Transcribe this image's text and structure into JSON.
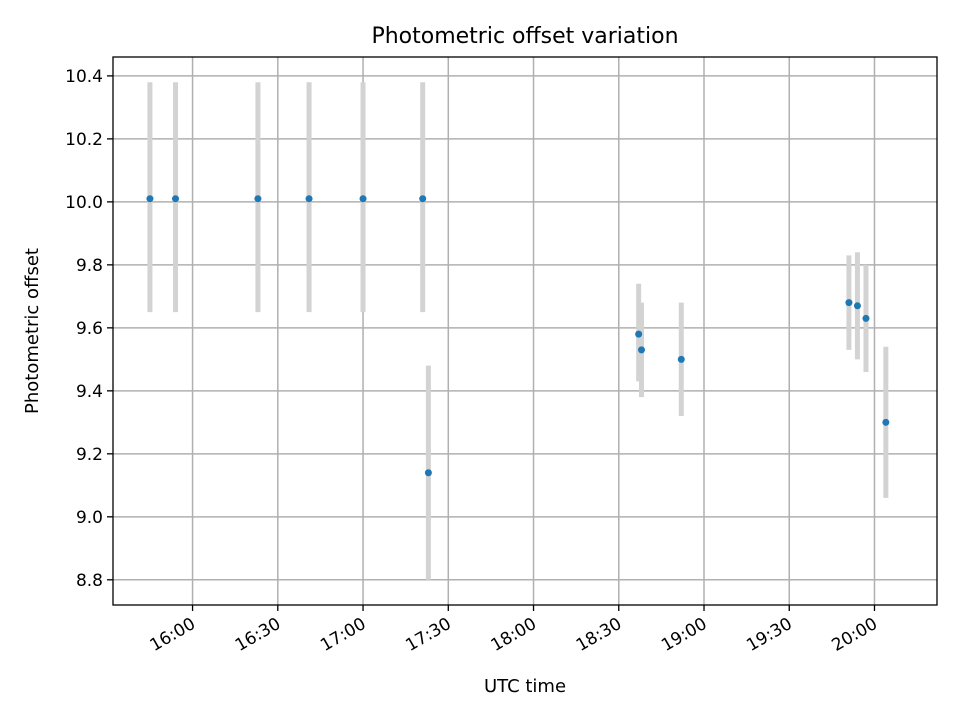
{
  "chart_data": {
    "type": "scatter",
    "title": "Photometric offset variation",
    "xlabel": "UTC time",
    "ylabel": "Photometric offset",
    "x_ticks": [
      "16:00",
      "16:30",
      "17:00",
      "17:30",
      "18:00",
      "18:30",
      "19:00",
      "19:30",
      "20:00"
    ],
    "x_tick_minutes": [
      960,
      990,
      1020,
      1050,
      1080,
      1110,
      1140,
      1170,
      1200
    ],
    "xlim_minutes": [
      932,
      1222
    ],
    "y_ticks": [
      "8.8",
      "9.0",
      "9.2",
      "9.4",
      "9.6",
      "9.8",
      "10.0",
      "10.2",
      "10.4"
    ],
    "y_tick_values": [
      8.8,
      9.0,
      9.2,
      9.4,
      9.6,
      9.8,
      10.0,
      10.2,
      10.4
    ],
    "ylim": [
      8.72,
      10.46
    ],
    "grid": true,
    "marker_color": "#1f77b4",
    "error_bar_color": "#d3d3d3",
    "points": [
      {
        "x": "15:45",
        "y": 10.01,
        "yerr_low": 9.65,
        "yerr_high": 10.38
      },
      {
        "x": "15:54",
        "y": 10.01,
        "yerr_low": 9.65,
        "yerr_high": 10.38
      },
      {
        "x": "16:23",
        "y": 10.01,
        "yerr_low": 9.65,
        "yerr_high": 10.38
      },
      {
        "x": "16:41",
        "y": 10.01,
        "yerr_low": 9.65,
        "yerr_high": 10.38
      },
      {
        "x": "17:00",
        "y": 10.01,
        "yerr_low": 9.65,
        "yerr_high": 10.38
      },
      {
        "x": "17:21",
        "y": 10.01,
        "yerr_low": 9.65,
        "yerr_high": 10.38
      },
      {
        "x": "17:23",
        "y": 9.14,
        "yerr_low": 8.8,
        "yerr_high": 9.48
      },
      {
        "x": "18:37",
        "y": 9.58,
        "yerr_low": 9.43,
        "yerr_high": 9.74
      },
      {
        "x": "18:38",
        "y": 9.53,
        "yerr_low": 9.38,
        "yerr_high": 9.68
      },
      {
        "x": "18:52",
        "y": 9.5,
        "yerr_low": 9.32,
        "yerr_high": 9.68
      },
      {
        "x": "19:51",
        "y": 9.68,
        "yerr_low": 9.53,
        "yerr_high": 9.83
      },
      {
        "x": "19:54",
        "y": 9.67,
        "yerr_low": 9.5,
        "yerr_high": 9.84
      },
      {
        "x": "19:57",
        "y": 9.63,
        "yerr_low": 9.46,
        "yerr_high": 9.8
      },
      {
        "x": "20:04",
        "y": 9.3,
        "yerr_low": 9.06,
        "yerr_high": 9.54
      }
    ]
  }
}
